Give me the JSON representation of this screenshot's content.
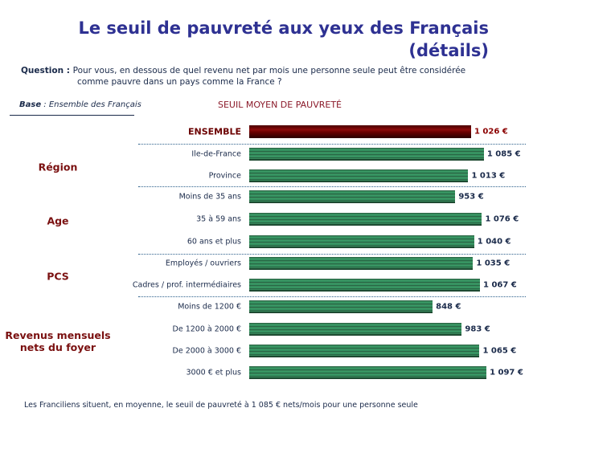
{
  "title_line1": "Le seuil de pauvreté aux yeux des Français",
  "title_line2": "(détails)",
  "question_label": "Question",
  "question_colon": " : ",
  "question_line1": "Pour vous, en dessous de quel revenu net par mois une personne seule peut être considérée",
  "question_line2": "comme pauvre dans un pays comme la France ?",
  "base_label": "Base",
  "base_text": " : Ensemble des Français",
  "note": "Les Franciliens situent, en moyenne, le seuil de pauvreté à 1 085 € nets/mois pour une personne seule",
  "colors": {
    "total": "#6b0000",
    "bars": "#2e8b5a",
    "title": "#2e3192",
    "group": "#7a1010"
  },
  "chart_data": {
    "type": "bar",
    "orientation": "horizontal",
    "title": "SEUIL MOYEN DE PAUVRETÉ",
    "unit": "€",
    "groups": [
      {
        "name": "",
        "items": [
          {
            "label": "ENSEMBLE",
            "value": 1026,
            "display": "1 026 €"
          }
        ]
      },
      {
        "name": "Région",
        "items": [
          {
            "label": "Ile-de-France",
            "value": 1085,
            "display": "1 085 €"
          },
          {
            "label": "Province",
            "value": 1013,
            "display": "1 013 €"
          }
        ]
      },
      {
        "name": "Age",
        "items": [
          {
            "label": "Moins de 35 ans",
            "value": 953,
            "display": "953 €"
          },
          {
            "label": "35 à 59 ans",
            "value": 1076,
            "display": "1 076 €"
          },
          {
            "label": "60 ans et plus",
            "value": 1040,
            "display": "1 040 €"
          }
        ]
      },
      {
        "name": "PCS",
        "items": [
          {
            "label": "Employés / ouvriers",
            "value": 1035,
            "display": "1 035 €"
          },
          {
            "label": "Cadres / prof. intermédiaires",
            "value": 1067,
            "display": "1 067 €"
          }
        ]
      },
      {
        "name": "Revenus mensuels nets du foyer",
        "items": [
          {
            "label": "Moins de 1200 €",
            "value": 848,
            "display": "848 €"
          },
          {
            "label": "De 1200 à 2000 €",
            "value": 983,
            "display": "983 €"
          },
          {
            "label": "De 2000 à 3000 €",
            "value": 1065,
            "display": "1 065 €"
          },
          {
            "label": "3000 € et plus",
            "value": 1097,
            "display": "1 097 €"
          }
        ]
      }
    ]
  }
}
